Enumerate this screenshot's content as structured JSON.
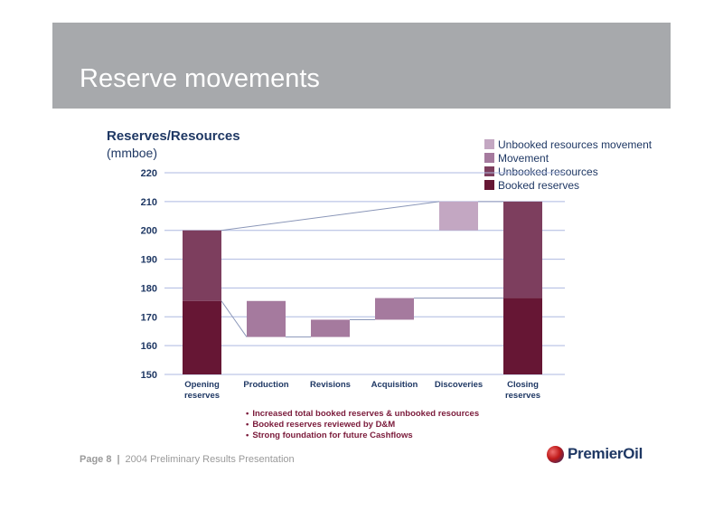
{
  "slide": {
    "title": "Reserve movements"
  },
  "chart_header": {
    "title": "Reserves/Resources",
    "unit": "(mmboe)"
  },
  "chart_data": {
    "type": "bar",
    "subtype": "waterfall",
    "title": "Reserves/Resources",
    "ylabel": "(mmboe)",
    "ylim": [
      150,
      220
    ],
    "yticks": [
      "150",
      "160",
      "170",
      "180",
      "190",
      "200",
      "210",
      "220"
    ],
    "grid": true,
    "legend_position": "top-right",
    "categories": [
      "Opening reserves",
      "Production",
      "Revisions",
      "Acquisition",
      "Discoveries",
      "Closing reserves"
    ],
    "series": [
      {
        "name": "Unbooked resources movement",
        "color": "#c3a7c2",
        "segments": [
          null,
          null,
          null,
          null,
          [
            200,
            210
          ],
          null
        ]
      },
      {
        "name": "Movement",
        "color": "#a57a9e",
        "segments": [
          null,
          [
            163,
            175.5
          ],
          [
            163,
            169
          ],
          [
            169,
            176.5
          ],
          null,
          null
        ]
      },
      {
        "name": "Unbooked resources",
        "color": "#7d3e5e",
        "segments": [
          [
            175.5,
            200
          ],
          null,
          null,
          null,
          null,
          [
            176.5,
            210
          ]
        ]
      },
      {
        "name": "Booked reserves",
        "color": "#661634",
        "segments": [
          [
            150,
            175.5
          ],
          null,
          null,
          null,
          null,
          [
            150,
            176.5
          ]
        ]
      }
    ],
    "connector_color": "#8a96b8"
  },
  "bullets": [
    "Increased total booked reserves & unbooked resources",
    "Booked reserves reviewed by D&M",
    "Strong foundation for future Cashflows"
  ],
  "footer": {
    "page": "Page 8",
    "separator": "|",
    "presentation": "2004 Preliminary Results Presentation"
  },
  "logo": {
    "text": "PremierOil"
  }
}
